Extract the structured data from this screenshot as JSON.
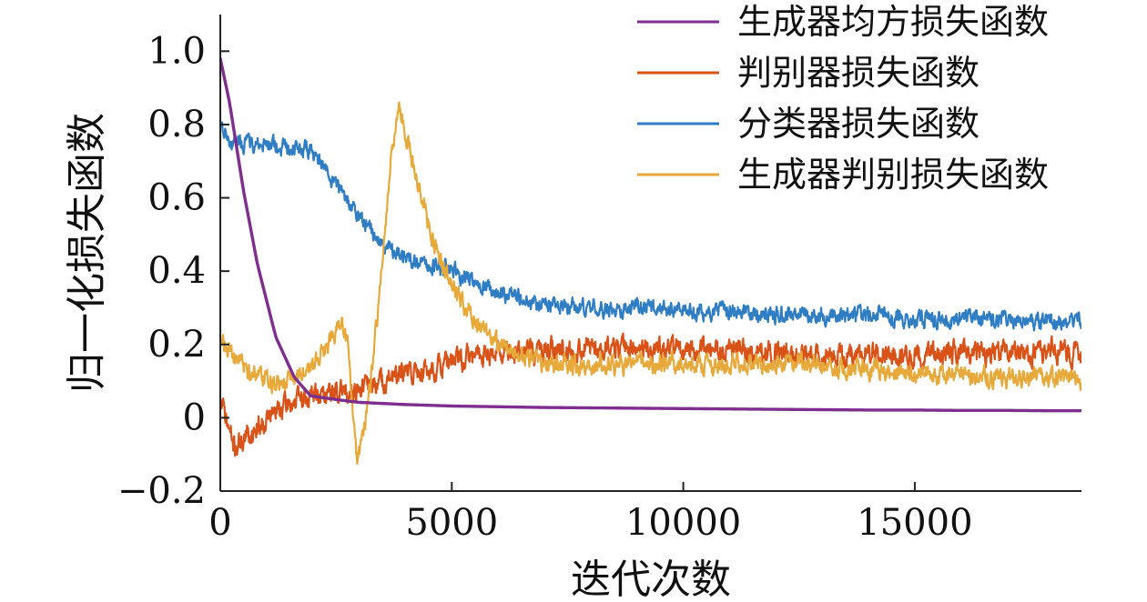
{
  "chart_data": {
    "type": "line",
    "title": "",
    "xlabel": "迭代次数",
    "ylabel": "归一化损失函数",
    "xlim": [
      0,
      18600
    ],
    "ylim": [
      -0.2,
      1.1
    ],
    "xticks": [
      0,
      5000,
      10000,
      15000
    ],
    "xtick_labels": [
      "0",
      "5000",
      "10000",
      "15000"
    ],
    "yticks": [
      -0.2,
      0,
      0.2,
      0.4,
      0.6,
      0.8,
      1.0
    ],
    "ytick_labels": [
      "−0.2",
      "0",
      "0.2",
      "0.4",
      "0.6",
      "0.8",
      "1.0"
    ],
    "grid": false,
    "legend_position": "top-right",
    "series": [
      {
        "name": "生成器均方损失函数",
        "color": "#7e2f8e",
        "x": [
          0,
          200,
          500,
          800,
          1200,
          1600,
          1950,
          2200,
          2600,
          3000,
          4000,
          5000,
          6000,
          7000,
          8000,
          9000,
          10000,
          11000,
          12000,
          13000,
          14000,
          15000,
          16000,
          17000,
          18000,
          18600
        ],
        "y": [
          0.98,
          0.86,
          0.62,
          0.42,
          0.22,
          0.11,
          0.06,
          0.055,
          0.048,
          0.042,
          0.036,
          0.032,
          0.03,
          0.028,
          0.027,
          0.026,
          0.025,
          0.024,
          0.023,
          0.022,
          0.021,
          0.021,
          0.02,
          0.02,
          0.019,
          0.019
        ]
      },
      {
        "name": "判别器损失函数",
        "color": "#d95319",
        "x": [
          0,
          300,
          600,
          1000,
          1500,
          2000,
          2500,
          3000,
          3500,
          4000,
          4500,
          5000,
          5500,
          6000,
          7000,
          8000,
          9000,
          10000,
          11000,
          12000,
          13000,
          14000,
          15000,
          16000,
          17000,
          18000,
          18600
        ],
        "y": [
          0.05,
          -0.08,
          -0.05,
          0.0,
          0.04,
          0.06,
          0.07,
          0.08,
          0.1,
          0.12,
          0.13,
          0.15,
          0.17,
          0.18,
          0.18,
          0.19,
          0.19,
          0.18,
          0.18,
          0.18,
          0.17,
          0.18,
          0.17,
          0.18,
          0.17,
          0.18,
          0.17
        ]
      },
      {
        "name": "分类器损失函数",
        "color": "#2f7dc3",
        "x": [
          0,
          200,
          500,
          1000,
          1500,
          2000,
          2200,
          2600,
          3000,
          3500,
          4000,
          4500,
          5000,
          5500,
          6000,
          7000,
          8000,
          9000,
          10000,
          11000,
          12000,
          13000,
          14000,
          15000,
          16000,
          17000,
          18000,
          18600
        ],
        "y": [
          0.8,
          0.76,
          0.75,
          0.74,
          0.74,
          0.73,
          0.69,
          0.62,
          0.55,
          0.47,
          0.43,
          0.42,
          0.4,
          0.37,
          0.34,
          0.31,
          0.3,
          0.3,
          0.29,
          0.29,
          0.28,
          0.28,
          0.28,
          0.27,
          0.27,
          0.27,
          0.26,
          0.26
        ]
      },
      {
        "name": "生成器判别损失函数",
        "color": "#e6a93a",
        "x": [
          0,
          200,
          500,
          800,
          1200,
          1600,
          2000,
          2300,
          2600,
          2750,
          2850,
          2950,
          3100,
          3300,
          3500,
          3700,
          3850,
          4000,
          4300,
          4600,
          5000,
          5500,
          6000,
          6500,
          7000,
          8000,
          9000,
          10000,
          11000,
          12000,
          13000,
          14000,
          15000,
          16000,
          17000,
          18000,
          18600
        ],
        "y": [
          0.22,
          0.18,
          0.14,
          0.11,
          0.09,
          0.1,
          0.14,
          0.19,
          0.27,
          0.2,
          0.05,
          -0.12,
          -0.04,
          0.16,
          0.42,
          0.72,
          0.86,
          0.78,
          0.62,
          0.48,
          0.36,
          0.26,
          0.2,
          0.17,
          0.15,
          0.14,
          0.15,
          0.15,
          0.15,
          0.15,
          0.14,
          0.13,
          0.12,
          0.12,
          0.11,
          0.11,
          0.1
        ]
      }
    ]
  }
}
